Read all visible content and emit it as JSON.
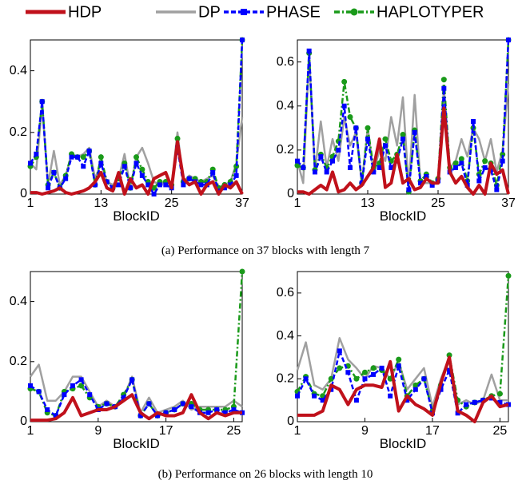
{
  "chart_data": [
    {
      "type": "line",
      "xlabel": "BlockID",
      "x": [
        1,
        2,
        3,
        4,
        5,
        6,
        7,
        8,
        9,
        10,
        11,
        12,
        13,
        14,
        15,
        16,
        17,
        18,
        19,
        20,
        21,
        22,
        23,
        24,
        25,
        26,
        27,
        28,
        29,
        30,
        31,
        32,
        33,
        34,
        35,
        36,
        37
      ],
      "xlim": [
        1,
        37
      ],
      "xticks": [
        1,
        13,
        25,
        37
      ],
      "ylim": [
        0,
        0.5
      ],
      "yticks": [
        0,
        0.2,
        0.4
      ],
      "series": [
        {
          "name": "HDP",
          "color": "#c0111b",
          "linestyle": "solid",
          "marker": null,
          "values": [
            0.005,
            0.005,
            0,
            0.005,
            0.01,
            0.02,
            0.005,
            0,
            0.005,
            0.01,
            0.02,
            0.04,
            0.07,
            0.02,
            0.01,
            0.07,
            0,
            0.05,
            0.02,
            0.03,
            0,
            0.05,
            0.06,
            0.07,
            0.02,
            0.17,
            0.05,
            0.03,
            0.04,
            0,
            0.03,
            0.04,
            0,
            0.03,
            0.02,
            0.04,
            0
          ]
        },
        {
          "name": "DP",
          "color": "#a0a0a0",
          "linestyle": "solid",
          "marker": null,
          "values": [
            0.1,
            0.08,
            0.29,
            0.03,
            0.14,
            0.03,
            0.06,
            0.13,
            0.12,
            0.13,
            0.15,
            0.05,
            0.1,
            0.04,
            0.03,
            0.05,
            0.13,
            0.02,
            0.12,
            0.15,
            0.1,
            0.04,
            0.03,
            0.04,
            0.03,
            0.2,
            0.04,
            0.06,
            0.05,
            0.04,
            0.05,
            0.06,
            0.02,
            0.03,
            0.04,
            0.1,
            0.25
          ]
        },
        {
          "name": "PHASE",
          "color": "#0000ff",
          "linestyle": "dashed",
          "marker": "square",
          "values": [
            0.1,
            0.13,
            0.3,
            0.02,
            0.07,
            0.02,
            0.05,
            0.12,
            0.12,
            0.09,
            0.14,
            0.03,
            0.1,
            0.04,
            0.02,
            0.03,
            0.09,
            0.02,
            0.1,
            0.06,
            0.03,
            0,
            0.03,
            0.03,
            0.02,
            0.15,
            0.03,
            0.05,
            0.04,
            0.03,
            0.03,
            0.07,
            0.01,
            0.02,
            0.03,
            0.06,
            0.5
          ]
        },
        {
          "name": "HAPLOTYPER",
          "color": "#1a9a1a",
          "linestyle": "dashdot",
          "marker": "circle",
          "values": [
            0.09,
            0.12,
            0.3,
            0.03,
            0.07,
            0.02,
            0.06,
            0.13,
            0.12,
            0.12,
            0.14,
            0.03,
            0.12,
            0.04,
            0.02,
            0.05,
            0.1,
            0.02,
            0.12,
            0.08,
            0.04,
            0.02,
            0.04,
            0.04,
            0.03,
            0.18,
            0.04,
            0.05,
            0.05,
            0.04,
            0.04,
            0.08,
            0.02,
            0.03,
            0.04,
            0.09,
            0.5
          ]
        }
      ]
    },
    {
      "type": "line",
      "xlabel": "BlockID",
      "x": [
        1,
        2,
        3,
        4,
        5,
        6,
        7,
        8,
        9,
        10,
        11,
        12,
        13,
        14,
        15,
        16,
        17,
        18,
        19,
        20,
        21,
        22,
        23,
        24,
        25,
        26,
        27,
        28,
        29,
        30,
        31,
        32,
        33,
        34,
        35,
        36,
        37
      ],
      "xlim": [
        1,
        37
      ],
      "xticks": [
        1,
        13,
        25,
        37
      ],
      "ylim": [
        0,
        0.7
      ],
      "yticks": [
        0,
        0.2,
        0.4,
        0.6
      ],
      "series": [
        {
          "name": "HDP",
          "color": "#c0111b",
          "linestyle": "solid",
          "marker": null,
          "values": [
            0.01,
            0.01,
            0,
            0.02,
            0.04,
            0.02,
            0.1,
            0.01,
            0.02,
            0.05,
            0.02,
            0.04,
            0.08,
            0.12,
            0.25,
            0.03,
            0.05,
            0.18,
            0.05,
            0.07,
            0.02,
            0.03,
            0.07,
            0.05,
            0.05,
            0.39,
            0.1,
            0.05,
            0.08,
            0.03,
            0,
            0.04,
            0,
            0.14,
            0.09,
            0.11,
            0
          ]
        },
        {
          "name": "DP",
          "color": "#a0a0a0",
          "linestyle": "solid",
          "marker": null,
          "values": [
            0.15,
            0.05,
            0.63,
            0.1,
            0.33,
            0.12,
            0.25,
            0.15,
            0.35,
            0.22,
            0.28,
            0.05,
            0.3,
            0.1,
            0.2,
            0.15,
            0.35,
            0.22,
            0.44,
            0.03,
            0.45,
            0.05,
            0.05,
            0.05,
            0.05,
            0.48,
            0.12,
            0.15,
            0.25,
            0.17,
            0.3,
            0.25,
            0.15,
            0.25,
            0.1,
            0.2,
            0.5
          ]
        },
        {
          "name": "PHASE",
          "color": "#0000ff",
          "linestyle": "dashed",
          "marker": "square",
          "values": [
            0.15,
            0.12,
            0.65,
            0.1,
            0.17,
            0.1,
            0.15,
            0.2,
            0.4,
            0.12,
            0.3,
            0.05,
            0.25,
            0.1,
            0.12,
            0.22,
            0.12,
            0.15,
            0.25,
            0.02,
            0.28,
            0.05,
            0.08,
            0.04,
            0.06,
            0.48,
            0.1,
            0.12,
            0.14,
            0.04,
            0.33,
            0.06,
            0.12,
            0.11,
            0.02,
            0.15,
            0.7
          ]
        },
        {
          "name": "HAPLOTYPER",
          "color": "#1a9a1a",
          "linestyle": "dashdot",
          "marker": "circle",
          "values": [
            0.13,
            0.12,
            0.64,
            0.11,
            0.18,
            0.12,
            0.17,
            0.24,
            0.51,
            0.35,
            0.3,
            0.05,
            0.3,
            0.12,
            0.14,
            0.25,
            0.15,
            0.18,
            0.27,
            0.01,
            0.29,
            0.06,
            0.09,
            0.05,
            0.07,
            0.52,
            0.12,
            0.14,
            0.16,
            0.06,
            0.3,
            0.09,
            0.15,
            0.14,
            0.04,
            0.18,
            0.7
          ]
        }
      ]
    },
    {
      "type": "line",
      "xlabel": "BlockID",
      "x": [
        1,
        2,
        3,
        4,
        5,
        6,
        7,
        8,
        9,
        10,
        11,
        12,
        13,
        14,
        15,
        16,
        17,
        18,
        19,
        20,
        21,
        22,
        23,
        24,
        25,
        26
      ],
      "xlim": [
        1,
        26
      ],
      "xticks": [
        1,
        9,
        17,
        25
      ],
      "ylim": [
        0,
        0.5
      ],
      "yticks": [
        0,
        0.2,
        0.4
      ],
      "series": [
        {
          "name": "HDP",
          "color": "#c0111b",
          "linestyle": "solid",
          "marker": null,
          "values": [
            0.005,
            0.005,
            0.005,
            0.01,
            0.03,
            0.08,
            0.02,
            0.03,
            0.04,
            0.04,
            0.05,
            0.07,
            0.09,
            0.03,
            0.01,
            0.03,
            0.02,
            0.02,
            0.03,
            0.09,
            0.03,
            0.01,
            0.03,
            0.02,
            0.03,
            0.03
          ]
        },
        {
          "name": "DP",
          "color": "#a0a0a0",
          "linestyle": "solid",
          "marker": null,
          "values": [
            0.15,
            0.19,
            0.07,
            0.07,
            0.1,
            0.15,
            0.15,
            0.1,
            0.05,
            0.07,
            0.05,
            0.08,
            0.15,
            0.03,
            0.08,
            0.03,
            0.04,
            0.05,
            0.07,
            0.04,
            0.05,
            0.05,
            0.05,
            0.05,
            0.07,
            0.05
          ]
        },
        {
          "name": "PHASE",
          "color": "#0000ff",
          "linestyle": "dashed",
          "marker": "square",
          "values": [
            0.12,
            0.1,
            0.04,
            0.02,
            0.09,
            0.12,
            0.14,
            0.09,
            0.04,
            0.06,
            0.05,
            0.08,
            0.14,
            0.02,
            0.06,
            0.02,
            0.03,
            0.04,
            0.06,
            0.05,
            0.03,
            0.03,
            0.04,
            0.03,
            0.04,
            0.03
          ]
        },
        {
          "name": "HAPLOTYPER",
          "color": "#1a9a1a",
          "linestyle": "dashdot",
          "marker": "circle",
          "values": [
            0.11,
            0.1,
            0.03,
            0.02,
            0.1,
            0.11,
            0.12,
            0.08,
            0.05,
            0.06,
            0.05,
            0.09,
            0.14,
            0.02,
            0.06,
            0.02,
            0.03,
            0.04,
            0.06,
            0.06,
            0.04,
            0.04,
            0.04,
            0.04,
            0.05,
            0.5
          ]
        }
      ]
    },
    {
      "type": "line",
      "xlabel": "BlockID",
      "x": [
        1,
        2,
        3,
        4,
        5,
        6,
        7,
        8,
        9,
        10,
        11,
        12,
        13,
        14,
        15,
        16,
        17,
        18,
        19,
        20,
        21,
        22,
        23,
        24,
        25,
        26
      ],
      "xlim": [
        1,
        26
      ],
      "xticks": [
        1,
        9,
        17,
        25
      ],
      "ylim": [
        0,
        0.7
      ],
      "yticks": [
        0,
        0.2,
        0.4,
        0.6
      ],
      "series": [
        {
          "name": "HDP",
          "color": "#c0111b",
          "linestyle": "solid",
          "marker": null,
          "values": [
            0.03,
            0.03,
            0.03,
            0.05,
            0.17,
            0.15,
            0.08,
            0.15,
            0.17,
            0.17,
            0.16,
            0.28,
            0.05,
            0.12,
            0.08,
            0.06,
            0.03,
            0.18,
            0.3,
            0.05,
            0.03,
            0,
            0.09,
            0.12,
            0.07,
            0.08
          ]
        },
        {
          "name": "DP",
          "color": "#a0a0a0",
          "linestyle": "solid",
          "marker": null,
          "values": [
            0.24,
            0.37,
            0.17,
            0.15,
            0.2,
            0.39,
            0.29,
            0.25,
            0.2,
            0.26,
            0.25,
            0.2,
            0.28,
            0.15,
            0.2,
            0.25,
            0.07,
            0.2,
            0.3,
            0.08,
            0.1,
            0.08,
            0.1,
            0.22,
            0.1,
            0.1
          ]
        },
        {
          "name": "PHASE",
          "color": "#0000ff",
          "linestyle": "dashed",
          "marker": "square",
          "values": [
            0.12,
            0.2,
            0.12,
            0.1,
            0.15,
            0.33,
            0.23,
            0.1,
            0.2,
            0.22,
            0.25,
            0.12,
            0.26,
            0.1,
            0.15,
            0.2,
            0.04,
            0.15,
            0.24,
            0.04,
            0.08,
            0.09,
            0.1,
            0.11,
            0.09,
            0.08
          ]
        },
        {
          "name": "HAPLOTYPER",
          "color": "#1a9a1a",
          "linestyle": "dashdot",
          "marker": "circle",
          "values": [
            0.14,
            0.21,
            0.13,
            0.12,
            0.2,
            0.25,
            0.26,
            0.2,
            0.23,
            0.25,
            0.24,
            0.2,
            0.29,
            0.12,
            0.17,
            0.2,
            0.05,
            0.17,
            0.31,
            0.1,
            0.07,
            0.09,
            0.1,
            0.12,
            0.13,
            0.68
          ]
        }
      ]
    }
  ],
  "captions": [
    "(a) Performance on 37 blocks with length 7",
    "(b) Performance on 26 blocks with length 10"
  ]
}
